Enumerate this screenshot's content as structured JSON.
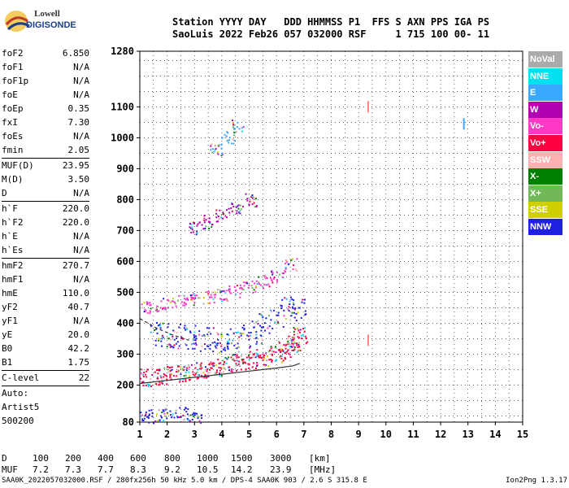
{
  "logo": {
    "line1": "Lowell",
    "line2": "DIGISONDE"
  },
  "header": {
    "line1": "Station YYYY DAY   DDD HHMMSS P1  FFS S AXN PPS IGA PS",
    "line2": "SaoLuis 2022 Feb26 057 032000 RSF     1 715 100 00- 11"
  },
  "params": [
    {
      "group": [
        {
          "name": "foF2",
          "value": "6.850"
        },
        {
          "name": "foF1",
          "value": "N/A"
        },
        {
          "name": "foF1p",
          "value": "N/A"
        },
        {
          "name": "foE",
          "value": "N/A"
        },
        {
          "name": "foEp",
          "value": "0.35"
        },
        {
          "name": "fxI",
          "value": "7.30"
        },
        {
          "name": "foEs",
          "value": "N/A"
        },
        {
          "name": "fmin",
          "value": "2.05"
        }
      ]
    },
    {
      "group": [
        {
          "name": "MUF(D)",
          "value": "23.95"
        },
        {
          "name": "M(D)",
          "value": "3.50"
        },
        {
          "name": "D",
          "value": "N/A"
        }
      ]
    },
    {
      "group": [
        {
          "name": "h`F",
          "value": "220.0"
        },
        {
          "name": "h`F2",
          "value": "220.0"
        },
        {
          "name": "h`E",
          "value": "N/A"
        },
        {
          "name": "h`Es",
          "value": "N/A"
        }
      ]
    },
    {
      "group": [
        {
          "name": "hmF2",
          "value": "270.7"
        },
        {
          "name": "hmF1",
          "value": "N/A"
        },
        {
          "name": "hmE",
          "value": "110.0"
        },
        {
          "name": "yF2",
          "value": "40.7"
        },
        {
          "name": "yF1",
          "value": "N/A"
        },
        {
          "name": "yE",
          "value": "20.0"
        },
        {
          "name": "B0",
          "value": "42.2"
        },
        {
          "name": "B1",
          "value": "1.75"
        }
      ]
    },
    {
      "group": [
        {
          "name": "C-level",
          "value": "22"
        }
      ]
    }
  ],
  "notes": [
    "Auto:",
    "Artist5",
    "500200"
  ],
  "legend": [
    {
      "label": "NoVal",
      "color": "#aaaaaa"
    },
    {
      "label": "NNE",
      "color": "#00e0f0"
    },
    {
      "label": "E",
      "color": "#3aa8ff"
    },
    {
      "label": "W",
      "color": "#b000b0"
    },
    {
      "label": "Vo-",
      "color": "#ff38c8"
    },
    {
      "label": "Vo+",
      "color": "#ff0040"
    },
    {
      "label": "SSW",
      "color": "#ffb0b0"
    },
    {
      "label": "X-",
      "color": "#008000"
    },
    {
      "label": "X+",
      "color": "#70b858"
    },
    {
      "label": "SSE",
      "color": "#d0d000"
    },
    {
      "label": "NNW",
      "color": "#2020e0"
    }
  ],
  "table": {
    "d_label": "D",
    "d_values": [
      "100",
      "200",
      "400",
      "600",
      "800",
      "1000",
      "1500",
      "3000",
      "[km]"
    ],
    "muf_label": "MUF",
    "muf_values": [
      "7.2",
      "7.3",
      "7.7",
      "8.3",
      "9.2",
      "10.5",
      "14.2",
      "23.9",
      "[MHz]"
    ]
  },
  "footer": {
    "left": "SAA0K_2022057032000.RSF / 280fx256h 50 kHz 5.0 km / DPS-4 SAA0K 903 / 2.6 S 315.8 E",
    "right": "Ion2Png 1.3.17"
  },
  "chart_data": {
    "type": "scatter",
    "title": "",
    "xlabel": "",
    "ylabel": "",
    "xlim": [
      1,
      15
    ],
    "ylim": [
      80,
      1280
    ],
    "x_ticks": [
      1,
      2,
      3,
      4,
      5,
      6,
      7,
      8,
      9,
      10,
      11,
      12,
      13,
      14,
      15
    ],
    "y_ticks": [
      80,
      200,
      300,
      400,
      500,
      600,
      700,
      800,
      900,
      1000,
      1100,
      1280
    ],
    "grid": true,
    "series": [
      {
        "name": "F trace (1st hop)",
        "color": "#ff0040",
        "x": [
          1.0,
          1.5,
          2.0,
          2.5,
          3.0,
          3.5,
          4.0,
          4.5,
          5.0,
          5.5,
          6.0,
          6.3,
          6.6,
          6.85
        ],
        "y": [
          228,
          228,
          232,
          238,
          246,
          254,
          262,
          272,
          282,
          292,
          302,
          315,
          332,
          360
        ]
      },
      {
        "name": "F trace (2nd hop)",
        "color": "#ff38c8",
        "x": [
          1.0,
          1.5,
          2.0,
          2.5,
          3.0,
          3.5,
          4.0,
          4.5,
          5.0,
          5.5,
          6.0,
          6.5
        ],
        "y": [
          450,
          455,
          462,
          470,
          478,
          486,
          496,
          508,
          520,
          535,
          555,
          590
        ]
      },
      {
        "name": "F trace (3rd hop)",
        "color": "#b000b0",
        "x": [
          3.0,
          3.5,
          4.0,
          4.5,
          5.0
        ],
        "y": [
          710,
          730,
          752,
          775,
          800
        ]
      },
      {
        "name": "F trace (4th hop)",
        "color": "#3aa8ff",
        "x": [
          3.8,
          4.2,
          4.6
        ],
        "y": [
          960,
          1000,
          1040
        ]
      },
      {
        "name": "spread F",
        "color": "#2020e0",
        "x": [
          1.6,
          2.0,
          2.4,
          2.8,
          3.2,
          3.6,
          4.0,
          4.4,
          4.8,
          5.2,
          5.6,
          6.0,
          6.4,
          6.8
        ],
        "y": [
          370,
          365,
          360,
          355,
          350,
          350,
          345,
          350,
          360,
          375,
          395,
          420,
          450,
          440
        ]
      },
      {
        "name": "low echoes",
        "color": "#2020e0",
        "x": [
          1.0,
          1.5,
          2.0,
          2.5,
          3.0
        ],
        "y": [
          95,
          100,
          105,
          110,
          98
        ]
      }
    ],
    "annotations": [
      {
        "type": "profile_curve",
        "color": "#333333",
        "x": [
          1.0,
          2.0,
          3.0,
          4.0,
          5.0,
          6.0,
          6.6,
          6.85
        ],
        "y": [
          205,
          215,
          225,
          235,
          245,
          255,
          262,
          270
        ]
      },
      {
        "type": "dashed_curve",
        "color": "#333333",
        "x": [
          1.0,
          1.6,
          2.2,
          2.8
        ],
        "y": [
          415,
          385,
          362,
          345
        ]
      },
      {
        "type": "markers",
        "color": "#ff8080",
        "x": [
          9.35,
          9.35
        ],
        "y": [
          1100,
          345
        ]
      },
      {
        "type": "markers",
        "color": "#3aa8ff",
        "x": [
          12.85
        ],
        "y": [
          1045
        ]
      }
    ]
  }
}
